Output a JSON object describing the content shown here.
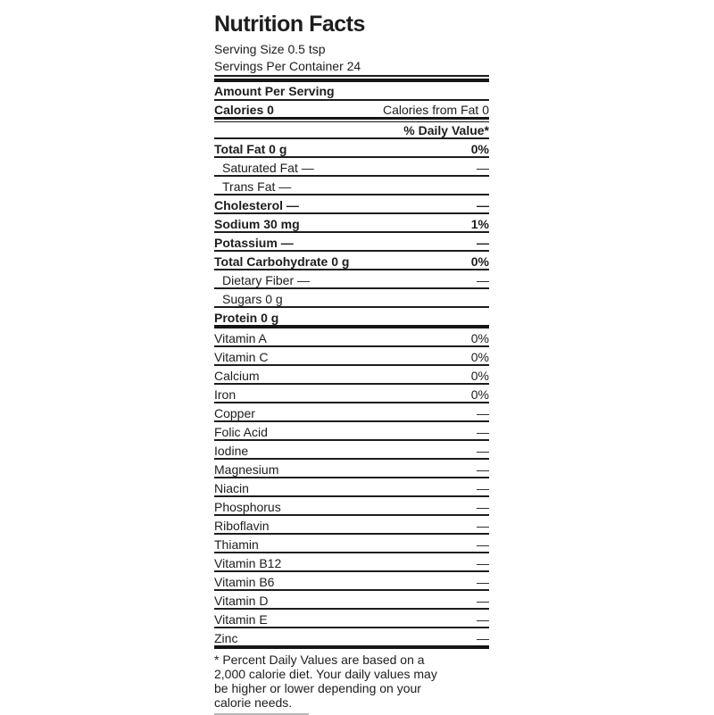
{
  "label": {
    "title": "Nutrition Facts",
    "serving_size": "Serving Size 0.5 tsp",
    "servings_per_container": "Servings Per Container 24",
    "amount_per_serving": "Amount Per Serving",
    "calories": "Calories 0",
    "calories_from_fat": "Calories from Fat 0",
    "daily_value_header": "% Daily Value*",
    "rows": [
      {
        "label": "Total Fat 0 g",
        "value": "0%"
      },
      {
        "label": "Saturated Fat —",
        "value": "—"
      },
      {
        "label": "Trans Fat —",
        "value": ""
      },
      {
        "label": "Cholesterol —",
        "value": "—"
      },
      {
        "label": "Sodium 30 mg",
        "value": "1%"
      },
      {
        "label": "Potassium —",
        "value": "—"
      },
      {
        "label": "Total Carbohydrate 0 g",
        "value": "0%"
      },
      {
        "label": "Dietary Fiber —",
        "value": "—"
      },
      {
        "label": "Sugars 0 g",
        "value": ""
      },
      {
        "label": "Protein 0 g",
        "value": ""
      },
      {
        "label": "Vitamin A",
        "value": "0%"
      },
      {
        "label": "Vitamin C",
        "value": "0%"
      },
      {
        "label": "Calcium",
        "value": "0%"
      },
      {
        "label": "Iron",
        "value": "0%"
      },
      {
        "label": "Copper",
        "value": "—"
      },
      {
        "label": "Folic Acid",
        "value": "—"
      },
      {
        "label": "Iodine",
        "value": "—"
      },
      {
        "label": "Magnesium",
        "value": "—"
      },
      {
        "label": "Niacin",
        "value": "—"
      },
      {
        "label": "Phosphorus",
        "value": "—"
      },
      {
        "label": "Riboflavin",
        "value": "—"
      },
      {
        "label": "Thiamin",
        "value": "—"
      },
      {
        "label": "Vitamin B12",
        "value": "—"
      },
      {
        "label": "Vitamin B6",
        "value": "—"
      },
      {
        "label": "Vitamin D",
        "value": "—"
      },
      {
        "label": "Vitamin E",
        "value": "—"
      },
      {
        "label": "Zinc",
        "value": "—"
      }
    ],
    "footnote": {
      "lines": [
        "* Percent Daily Values are based on a",
        "2,000 calorie diet. Your daily values may",
        "be higher or lower depending on your",
        "calorie needs."
      ]
    },
    "colors": {
      "text": "#1d1d1d",
      "rule": "#151515"
    }
  }
}
